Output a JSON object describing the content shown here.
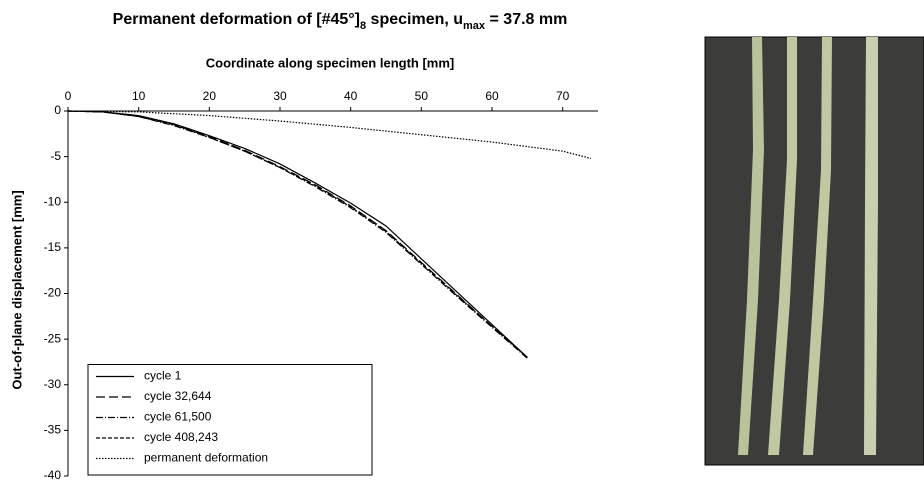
{
  "chart_data": {
    "type": "line",
    "title": [
      {
        "text": "Permanent deformation of [#45°]"
      },
      {
        "text": "8",
        "sub": true
      },
      {
        "text": " specimen, u"
      },
      {
        "text": "max",
        "sub": true
      },
      {
        "text": " = 37.8 mm"
      }
    ],
    "x_label": "Coordinate along specimen length [mm]",
    "y_label": "Out-of-plane displacement [mm]",
    "xlim": [
      0,
      75
    ],
    "xticks": [
      0,
      10,
      20,
      30,
      40,
      50,
      60,
      70
    ],
    "ylim": [
      -40,
      0
    ],
    "yticks": [
      0,
      -5,
      -10,
      -15,
      -20,
      -25,
      -30,
      -35,
      -40
    ],
    "legend": "lower-left",
    "series": [
      {
        "name": "cycle 1",
        "color": "#000000",
        "dash": "none",
        "x": [
          0,
          5,
          10,
          15,
          20,
          25,
          30,
          35,
          40,
          45,
          50,
          55,
          60,
          65
        ],
        "values": [
          0,
          -0.1,
          -0.5,
          -1.4,
          -2.7,
          -4.1,
          -5.8,
          -7.9,
          -10.1,
          -12.6,
          -16.2,
          -19.8,
          -23.4,
          -27
        ]
      },
      {
        "name": "cycle 32,644",
        "color": "#000000",
        "dash": "9 4",
        "x": [
          0,
          5,
          10,
          15,
          20,
          25,
          30,
          35,
          40,
          45,
          50,
          55,
          60,
          65
        ],
        "values": [
          0,
          -0.1,
          -0.6,
          -1.5,
          -2.8,
          -4.3,
          -6.1,
          -8.1,
          -10.4,
          -13.1,
          -16.6,
          -20.1,
          -23.6,
          -27
        ]
      },
      {
        "name": "cycle 61,500",
        "color": "#000000",
        "dash": "7 2 1 2",
        "x": [
          0,
          5,
          10,
          15,
          20,
          25,
          30,
          35,
          40,
          45,
          50,
          55,
          60,
          65
        ],
        "values": [
          0,
          -0.1,
          -0.6,
          -1.6,
          -2.9,
          -4.4,
          -6.2,
          -8.3,
          -10.6,
          -13.3,
          -16.8,
          -20.3,
          -23.7,
          -27.1
        ]
      },
      {
        "name": "cycle 408,243",
        "color": "#000000",
        "dash": "4 2",
        "x": [
          0,
          5,
          10,
          15,
          20,
          25,
          30,
          35,
          40,
          45,
          50,
          55,
          60,
          65
        ],
        "values": [
          0,
          -0.1,
          -0.6,
          -1.5,
          -2.9,
          -4.4,
          -6.2,
          -8.2,
          -10.5,
          -13.2,
          -16.7,
          -20.2,
          -23.6,
          -27
        ]
      },
      {
        "name": "permanent deformation",
        "color": "#000000",
        "dash": "1.5 1.5",
        "x": [
          0,
          10,
          20,
          30,
          40,
          50,
          60,
          70,
          74
        ],
        "values": [
          0,
          -0.1,
          -0.5,
          -1.1,
          -1.8,
          -2.6,
          -3.4,
          -4.4,
          -5.2
        ]
      }
    ]
  }
}
